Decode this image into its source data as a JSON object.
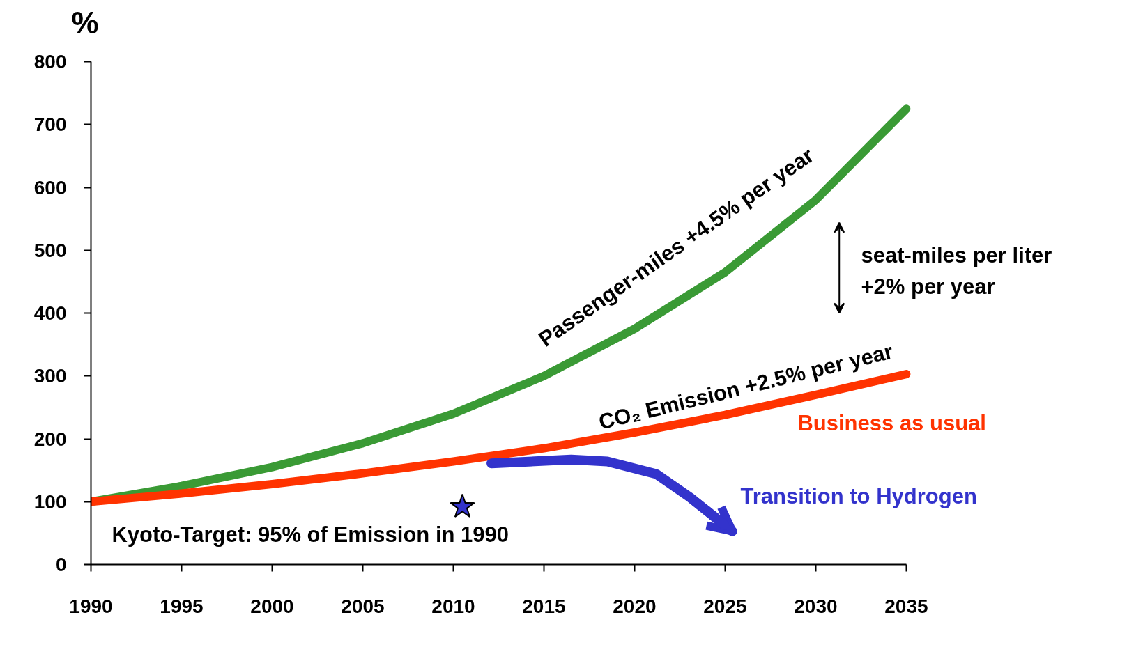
{
  "chart_data": {
    "type": "line",
    "ylabel": "%",
    "xlim": [
      1990,
      2035
    ],
    "xticks": [
      1990,
      1995,
      2000,
      2005,
      2010,
      2015,
      2020,
      2025,
      2030,
      2035
    ],
    "ylim": [
      0,
      800
    ],
    "yticks": [
      0,
      100,
      200,
      300,
      400,
      500,
      600,
      700,
      800
    ],
    "grid": false,
    "legend": false,
    "series": [
      {
        "color": "#3a9a35",
        "x": [
          1990,
          1995,
          2000,
          2005,
          2010,
          2015,
          2020,
          2025,
          2030,
          2035
        ],
        "values": [
          100,
          125,
          155,
          193,
          240,
          300,
          375,
          465,
          580,
          725
        ]
      },
      {
        "name": "Business as usual",
        "color": "#ff3300",
        "x": [
          1990,
          1995,
          2000,
          2005,
          2010,
          2015,
          2020,
          2025,
          2030,
          2035
        ],
        "values": [
          100,
          113,
          128,
          145,
          164,
          185,
          210,
          238,
          270,
          303
        ]
      },
      {
        "name": "Transition to Hydrogen",
        "color": "#3333cc",
        "x": [
          2012.1,
          2016.5,
          2018.5,
          2021.2,
          2023.1,
          2025.4
        ],
        "values": [
          161,
          167,
          164,
          144,
          106,
          53
        ]
      },
      {
        "name": "Kyoto-Target: 95% of Emission in 1990",
        "type": "scatter",
        "marker": "star",
        "color": "#3333cc",
        "x": [
          2010.5
        ],
        "values": [
          92
        ]
      }
    ],
    "annotations": [
      "Passenger-miles +4.5% per year",
      "CO₂ Emission +2.5% per year",
      "seat-miles per liter\n+2% per year"
    ]
  }
}
